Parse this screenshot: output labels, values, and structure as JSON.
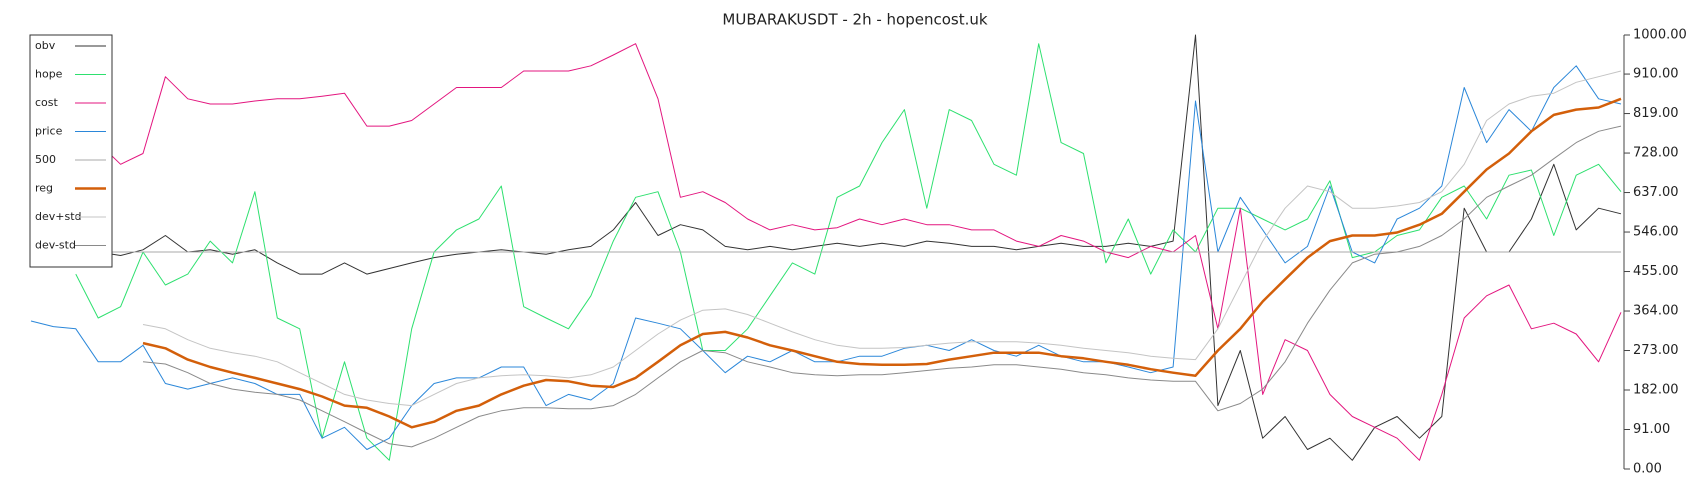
{
  "chart_data": {
    "type": "line",
    "title": "MUBARAKUSDT - 2h - hopencost.uk",
    "ylim": [
      0,
      1000
    ],
    "yticks": [
      {
        "value": 0,
        "label": "0.00"
      },
      {
        "value": 91,
        "label": "91.00"
      },
      {
        "value": 182,
        "label": "182.00"
      },
      {
        "value": 273,
        "label": "273.00"
      },
      {
        "value": 364,
        "label": "364.00"
      },
      {
        "value": 455,
        "label": "455.00"
      },
      {
        "value": 546,
        "label": "546.00"
      },
      {
        "value": 637,
        "label": "637.00"
      },
      {
        "value": 728,
        "label": "728.00"
      },
      {
        "value": 819,
        "label": "819.00"
      },
      {
        "value": 910,
        "label": "910.00"
      },
      {
        "value": 1000,
        "label": "1000.00"
      }
    ],
    "legend": "top-left",
    "series": [
      {
        "name": "obv",
        "color": "#333333",
        "width": 1,
        "values": [
          500,
          500,
          500,
          500,
          492,
          505,
          538,
          500,
          505,
          495,
          505,
          475,
          449,
          449,
          475,
          449,
          462,
          475,
          487,
          495,
          500,
          505,
          500,
          495,
          505,
          513,
          551,
          614,
          538,
          563,
          551,
          513,
          505,
          513,
          505,
          513,
          520,
          513,
          520,
          513,
          525,
          520,
          513,
          513,
          505,
          513,
          520,
          513,
          513,
          520,
          513,
          525,
          1000,
          146,
          273,
          71,
          121,
          45,
          71,
          20,
          96,
          121,
          71,
          121,
          601,
          500,
          500,
          576,
          702,
          551,
          601,
          588
        ]
      },
      {
        "name": "hope",
        "color": "#2ee06f",
        "width": 1,
        "values": [
          null,
          null,
          449,
          348,
          374,
          500,
          424,
          449,
          525,
          475,
          639,
          348,
          323,
          71,
          247,
          71,
          20,
          323,
          500,
          551,
          576,
          652,
          374,
          348,
          323,
          399,
          525,
          626,
          639,
          500,
          273,
          273,
          323,
          399,
          475,
          449,
          626,
          652,
          752,
          828,
          601,
          828,
          803,
          702,
          677,
          980,
          752,
          727,
          475,
          576,
          449,
          551,
          500,
          601,
          601,
          576,
          551,
          576,
          664,
          487,
          500,
          538,
          551,
          626,
          652,
          576,
          677,
          689,
          538,
          677,
          702,
          639
        ]
      },
      {
        "name": "cost",
        "color": "#e3167f",
        "width": 1,
        "values": [
          null,
          null,
          null,
          752,
          702,
          727,
          904,
          853,
          841,
          841,
          848,
          853,
          853,
          859,
          866,
          790,
          790,
          803,
          841,
          879,
          879,
          879,
          917,
          917,
          917,
          929,
          954,
          980,
          853,
          626,
          639,
          614,
          576,
          551,
          563,
          551,
          556,
          576,
          563,
          576,
          563,
          563,
          551,
          551,
          525,
          513,
          538,
          525,
          500,
          487,
          513,
          500,
          538,
          323,
          601,
          172,
          298,
          273,
          172,
          121,
          96,
          71,
          20,
          172,
          348,
          399,
          424,
          323,
          336,
          311,
          247,
          361
        ]
      },
      {
        "name": "price",
        "color": "#2b87d9",
        "width": 1,
        "values": [
          341,
          328,
          323,
          247,
          247,
          285,
          197,
          184,
          197,
          210,
          197,
          172,
          172,
          71,
          96,
          45,
          71,
          146,
          197,
          210,
          210,
          235,
          235,
          146,
          172,
          159,
          197,
          348,
          336,
          323,
          273,
          222,
          260,
          247,
          273,
          247,
          247,
          260,
          260,
          278,
          285,
          273,
          298,
          273,
          260,
          285,
          260,
          247,
          247,
          235,
          222,
          235,
          848,
          500,
          626,
          551,
          475,
          513,
          652,
          500,
          475,
          576,
          601,
          652,
          879,
          752,
          828,
          778,
          879,
          929,
          853,
          841
        ]
      },
      {
        "name": "500",
        "color": "#aaaaaa",
        "width": 1,
        "values": [
          500,
          500,
          500,
          500,
          500,
          500,
          500,
          500,
          500,
          500,
          500,
          500,
          500,
          500,
          500,
          500,
          500,
          500,
          500,
          500,
          500,
          500,
          500,
          500,
          500,
          500,
          500,
          500,
          500,
          500,
          500,
          500,
          500,
          500,
          500,
          500,
          500,
          500,
          500,
          500,
          500,
          500,
          500,
          500,
          500,
          500,
          500,
          500,
          500,
          500,
          500,
          500,
          500,
          500,
          500,
          500,
          500,
          500,
          500,
          500,
          500,
          500,
          500,
          500,
          500,
          500,
          500,
          500,
          500,
          500,
          500,
          500
        ]
      },
      {
        "name": "reg",
        "color": "#d35f0a",
        "width": 2.5,
        "values": [
          null,
          null,
          null,
          null,
          null,
          290,
          278,
          252,
          235,
          222,
          210,
          197,
          184,
          167,
          146,
          141,
          121,
          96,
          109,
          134,
          146,
          172,
          192,
          205,
          202,
          192,
          189,
          210,
          247,
          285,
          311,
          316,
          303,
          285,
          273,
          260,
          247,
          242,
          240,
          240,
          242,
          252,
          260,
          268,
          268,
          268,
          260,
          255,
          247,
          240,
          230,
          222,
          215,
          273,
          323,
          386,
          437,
          487,
          525,
          538,
          538,
          545,
          563,
          588,
          639,
          690,
          727,
          778,
          816,
          828,
          833,
          853
        ]
      },
      {
        "name": "dev+std",
        "color": "#c4c4c4",
        "width": 1,
        "values": [
          null,
          null,
          null,
          null,
          null,
          333,
          323,
          298,
          278,
          268,
          260,
          247,
          222,
          197,
          172,
          159,
          151,
          146,
          172,
          197,
          210,
          215,
          217,
          215,
          210,
          217,
          235,
          273,
          311,
          343,
          366,
          369,
          356,
          336,
          316,
          298,
          285,
          278,
          278,
          280,
          285,
          290,
          293,
          293,
          293,
          290,
          285,
          278,
          273,
          268,
          260,
          255,
          252,
          323,
          424,
          525,
          601,
          652,
          639,
          601,
          601,
          606,
          614,
          639,
          702,
          803,
          841,
          859,
          866,
          891,
          904,
          917
        ]
      },
      {
        "name": "dev-std",
        "color": "#8a8a8a",
        "width": 1,
        "values": [
          null,
          null,
          null,
          null,
          null,
          247,
          242,
          222,
          197,
          184,
          177,
          172,
          159,
          134,
          109,
          83,
          58,
          51,
          71,
          96,
          121,
          134,
          141,
          141,
          139,
          139,
          146,
          172,
          210,
          247,
          273,
          268,
          247,
          235,
          222,
          217,
          215,
          217,
          217,
          222,
          227,
          232,
          235,
          240,
          240,
          235,
          230,
          222,
          217,
          210,
          205,
          202,
          202,
          134,
          151,
          184,
          247,
          336,
          412,
          475,
          495,
          500,
          513,
          538,
          576,
          626,
          652,
          677,
          715,
          752,
          778,
          790
        ]
      }
    ]
  }
}
